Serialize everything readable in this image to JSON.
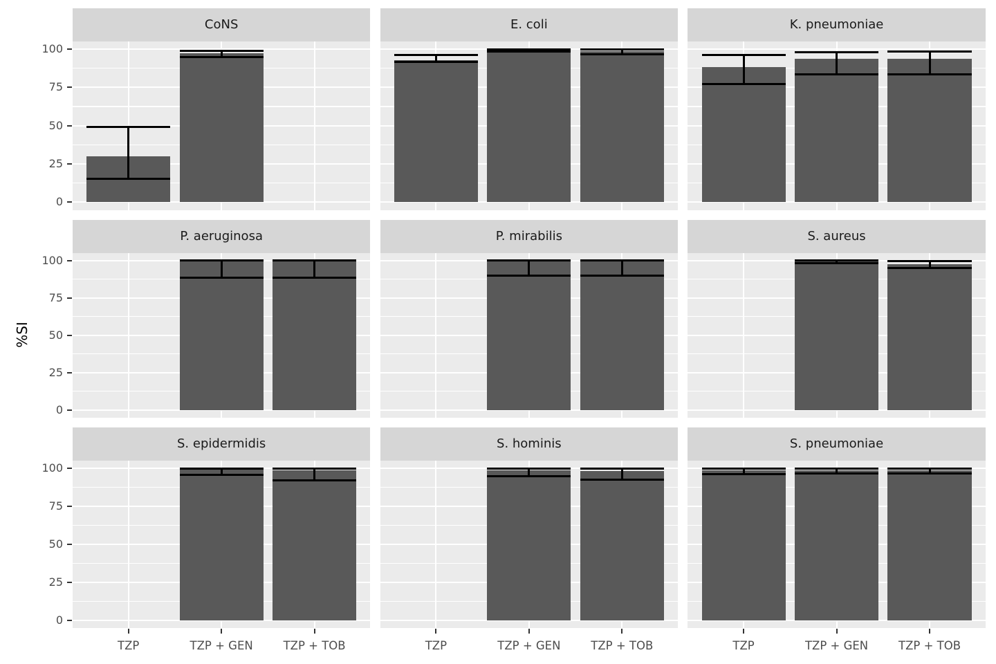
{
  "chart": {
    "ylabel": "%SI",
    "x_categories": [
      "TZP",
      "TZP + GEN",
      "TZP + TOB"
    ],
    "y_ticks": [
      "0",
      "25",
      "50",
      "75",
      "100"
    ],
    "y_tick_values": [
      0,
      25,
      50,
      75,
      100
    ],
    "y_minor_values": [
      12.5,
      37.5,
      62.5,
      87.5
    ],
    "ylim": [
      -5,
      105
    ],
    "colors": {
      "panel_bg": "#EBEBEB",
      "strip_bg": "#D6D6D6",
      "gridline": "#FFFFFF",
      "bar_fill": "#595959",
      "error_bar": "#000000",
      "tick_mark": "#333333",
      "axis_text": "#4D4D4D",
      "strip_text": "#1A1A1A",
      "axis_title_text": "#000000"
    }
  },
  "chart_data": {
    "type": "bar",
    "title": "",
    "xlabel": "",
    "ylabel": "%SI",
    "legend": "none",
    "grid": "on",
    "facets": [
      {
        "title": "CoNS",
        "bars": [
          {
            "category": "TZP",
            "value": 30,
            "lo": 15.5,
            "hi": 49
          },
          {
            "category": "TZP + GEN",
            "value": 97.5,
            "lo": 94.9,
            "hi": 98.8
          },
          null
        ]
      },
      {
        "title": "E. coli",
        "bars": [
          {
            "category": "TZP",
            "value": 93,
            "lo": 91.5,
            "hi": 96.3
          },
          {
            "category": "TZP + GEN",
            "value": 99.5,
            "lo": 98.5,
            "hi": 100
          },
          {
            "category": "TZP + TOB",
            "value": 98.5,
            "lo": 96.5,
            "hi": 99.8
          }
        ]
      },
      {
        "title": "K. pneumoniae",
        "bars": [
          {
            "category": "TZP",
            "value": 88.5,
            "lo": 77,
            "hi": 96
          },
          {
            "category": "TZP + GEN",
            "value": 93.5,
            "lo": 83.5,
            "hi": 98
          },
          {
            "category": "TZP + TOB",
            "value": 93.5,
            "lo": 83.5,
            "hi": 98.3
          }
        ]
      },
      {
        "title": "P. aeruginosa",
        "bars": [
          null,
          {
            "category": "TZP + GEN",
            "value": 100,
            "lo": 88.6,
            "hi": 100
          },
          {
            "category": "TZP + TOB",
            "value": 100,
            "lo": 88.6,
            "hi": 100
          }
        ]
      },
      {
        "title": "P. mirabilis",
        "bars": [
          null,
          {
            "category": "TZP + GEN",
            "value": 100,
            "lo": 90,
            "hi": 100
          },
          {
            "category": "TZP + TOB",
            "value": 100,
            "lo": 90,
            "hi": 100
          }
        ]
      },
      {
        "title": "S. aureus",
        "bars": [
          null,
          {
            "category": "TZP + GEN",
            "value": 99.4,
            "lo": 98.2,
            "hi": 99.9
          },
          {
            "category": "TZP + TOB",
            "value": 97.5,
            "lo": 95,
            "hi": 99.7
          }
        ]
      },
      {
        "title": "S. epidermidis",
        "bars": [
          null,
          {
            "category": "TZP + GEN",
            "value": 99,
            "lo": 95.5,
            "hi": 99.8
          },
          {
            "category": "TZP + TOB",
            "value": 98.5,
            "lo": 92,
            "hi": 99.8
          }
        ]
      },
      {
        "title": "S. hominis",
        "bars": [
          null,
          {
            "category": "TZP + GEN",
            "value": 98.5,
            "lo": 94.5,
            "hi": 99.8
          },
          {
            "category": "TZP + TOB",
            "value": 98,
            "lo": 92.5,
            "hi": 99.7
          }
        ]
      },
      {
        "title": "S. pneumoniae",
        "bars": [
          {
            "category": "TZP",
            "value": 98.5,
            "lo": 96,
            "hi": 99.8
          },
          {
            "category": "TZP + GEN",
            "value": 98.5,
            "lo": 96.3,
            "hi": 99.8
          },
          {
            "category": "TZP + TOB",
            "value": 98.5,
            "lo": 96.3,
            "hi": 99.8
          }
        ]
      }
    ]
  }
}
